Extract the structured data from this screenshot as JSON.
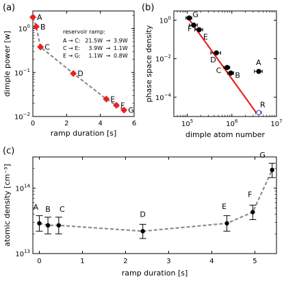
{
  "chart_data": [
    {
      "type": "scatter",
      "panel_label": "(a)",
      "xlabel": "ramp duration [s]",
      "ylabel": "dimple power [w]",
      "xlim": [
        0,
        6
      ],
      "ylim": [
        0.01,
        2.5
      ],
      "yscale": "log",
      "xticks": [
        0,
        2,
        4,
        6
      ],
      "ytick_labels": [
        {
          "value": 1,
          "base": "10",
          "exp": "0"
        },
        {
          "value": 0.1,
          "base": "10",
          "exp": "−1"
        },
        {
          "value": 0.01,
          "base": "10",
          "exp": "−2"
        }
      ],
      "marker": "diamond",
      "marker_color": "#e8211f",
      "fit_line_color": "#8c8c8c",
      "points": [
        {
          "label": "A",
          "x": 0.0,
          "y": 1.8
        },
        {
          "label": "B",
          "x": 0.2,
          "y": 1.1
        },
        {
          "label": "C",
          "x": 0.45,
          "y": 0.38
        },
        {
          "label": "D",
          "x": 2.4,
          "y": 0.095
        },
        {
          "label": "E",
          "x": 4.35,
          "y": 0.025
        },
        {
          "label": "F",
          "x": 4.95,
          "y": 0.018
        },
        {
          "label": "G",
          "x": 5.4,
          "y": 0.014
        }
      ],
      "legend": {
        "title": "reservoir ramp:",
        "rows": [
          {
            "range": "A → C:",
            "from": "21.5W",
            "to": "3.9W"
          },
          {
            "range": "C → E:",
            "from": "3.9W",
            "to": "1.1W"
          },
          {
            "range": "E → G:",
            "from": "1.1W",
            "to": "0.8W"
          }
        ],
        "arrow": "→"
      }
    },
    {
      "type": "scatter",
      "panel_label": "(b)",
      "xlabel": "dimple atom number",
      "ylabel": "phase space density",
      "xscale": "log",
      "yscale": "log",
      "xlim": [
        50000,
        10000000
      ],
      "ylim": [
        1e-05,
        3
      ],
      "xtick_labels": [
        {
          "value": 100000,
          "base": "10",
          "exp": "5"
        },
        {
          "value": 1000000,
          "base": "10",
          "exp": "6"
        },
        {
          "value": 10000000,
          "base": "10",
          "exp": "7"
        }
      ],
      "ytick_labels": [
        {
          "value": 1,
          "base": "10",
          "exp": "0"
        },
        {
          "value": 0.01,
          "base": "10",
          "exp": "−2"
        },
        {
          "value": 0.0001,
          "base": "10",
          "exp": "−4"
        }
      ],
      "fit_line_color": "#e8211f",
      "fit_line": [
        {
          "x": 100000,
          "y": 1.5
        },
        {
          "x": 3500000,
          "y": 1.6e-05
        }
      ],
      "points": [
        {
          "label": "G",
          "x": 110000,
          "y": 1.3,
          "xerr_frac": 0.15,
          "color": "#000000"
        },
        {
          "label": "F",
          "x": 140000,
          "y": 0.55,
          "xerr_frac": 0.2,
          "color": "#000000"
        },
        {
          "label": "E",
          "x": 185000,
          "y": 0.32,
          "xerr_frac": 0.2,
          "color": "#000000"
        },
        {
          "label": "D",
          "x": 450000,
          "y": 0.02,
          "xerr_frac": 0.25,
          "color": "#000000"
        },
        {
          "label": "C",
          "x": 780000,
          "y": 0.0035,
          "xerr_frac": 0.15,
          "color": "#000000"
        },
        {
          "label": "B",
          "x": 950000,
          "y": 0.0018,
          "xerr_frac": 0.15,
          "color": "#000000"
        },
        {
          "label": "A",
          "x": 4000000,
          "y": 0.0022,
          "xerr_frac": 0.2,
          "color": "#000000"
        },
        {
          "label": "R",
          "x": 4000000,
          "y": 1.6e-05,
          "xerr_frac": 0.15,
          "color": "#3a3a9a",
          "open": true
        }
      ]
    },
    {
      "type": "line",
      "panel_label": "(c)",
      "xlabel": "ramp duration [s]",
      "ylabel": "atomic density [cm⁻³]",
      "yscale": "log",
      "xlim": [
        -0.15,
        5.5
      ],
      "ylim": [
        10000000000000,
        300000000000000
      ],
      "xticks": [
        0,
        1,
        2,
        3,
        4,
        5
      ],
      "ytick_labels": [
        {
          "value": 100000000000000,
          "base": "10",
          "exp": "14"
        },
        {
          "value": 10000000000000,
          "base": "10",
          "exp": "13"
        }
      ],
      "line_color": "#8c8c8c",
      "points": [
        {
          "label": "A",
          "x": 0.0,
          "y": 29000000000000,
          "err_lo": 7000000000000,
          "err_hi": 9000000000000
        },
        {
          "label": "B",
          "x": 0.2,
          "y": 27000000000000,
          "err_lo": 7000000000000,
          "err_hi": 9000000000000
        },
        {
          "label": "C",
          "x": 0.45,
          "y": 27000000000000,
          "err_lo": 7000000000000,
          "err_hi": 9000000000000
        },
        {
          "label": "D",
          "x": 2.4,
          "y": 22000000000000,
          "err_lo": 5000000000000,
          "err_hi": 6000000000000
        },
        {
          "label": "E",
          "x": 4.35,
          "y": 29000000000000,
          "err_lo": 7000000000000,
          "err_hi": 9000000000000
        },
        {
          "label": "F",
          "x": 4.95,
          "y": 43000000000000,
          "err_lo": 10000000000000,
          "err_hi": 12000000000000
        },
        {
          "label": "G",
          "x": 5.4,
          "y": 190000000000000,
          "err_lo": 45000000000000,
          "err_hi": 50000000000000
        }
      ]
    }
  ]
}
